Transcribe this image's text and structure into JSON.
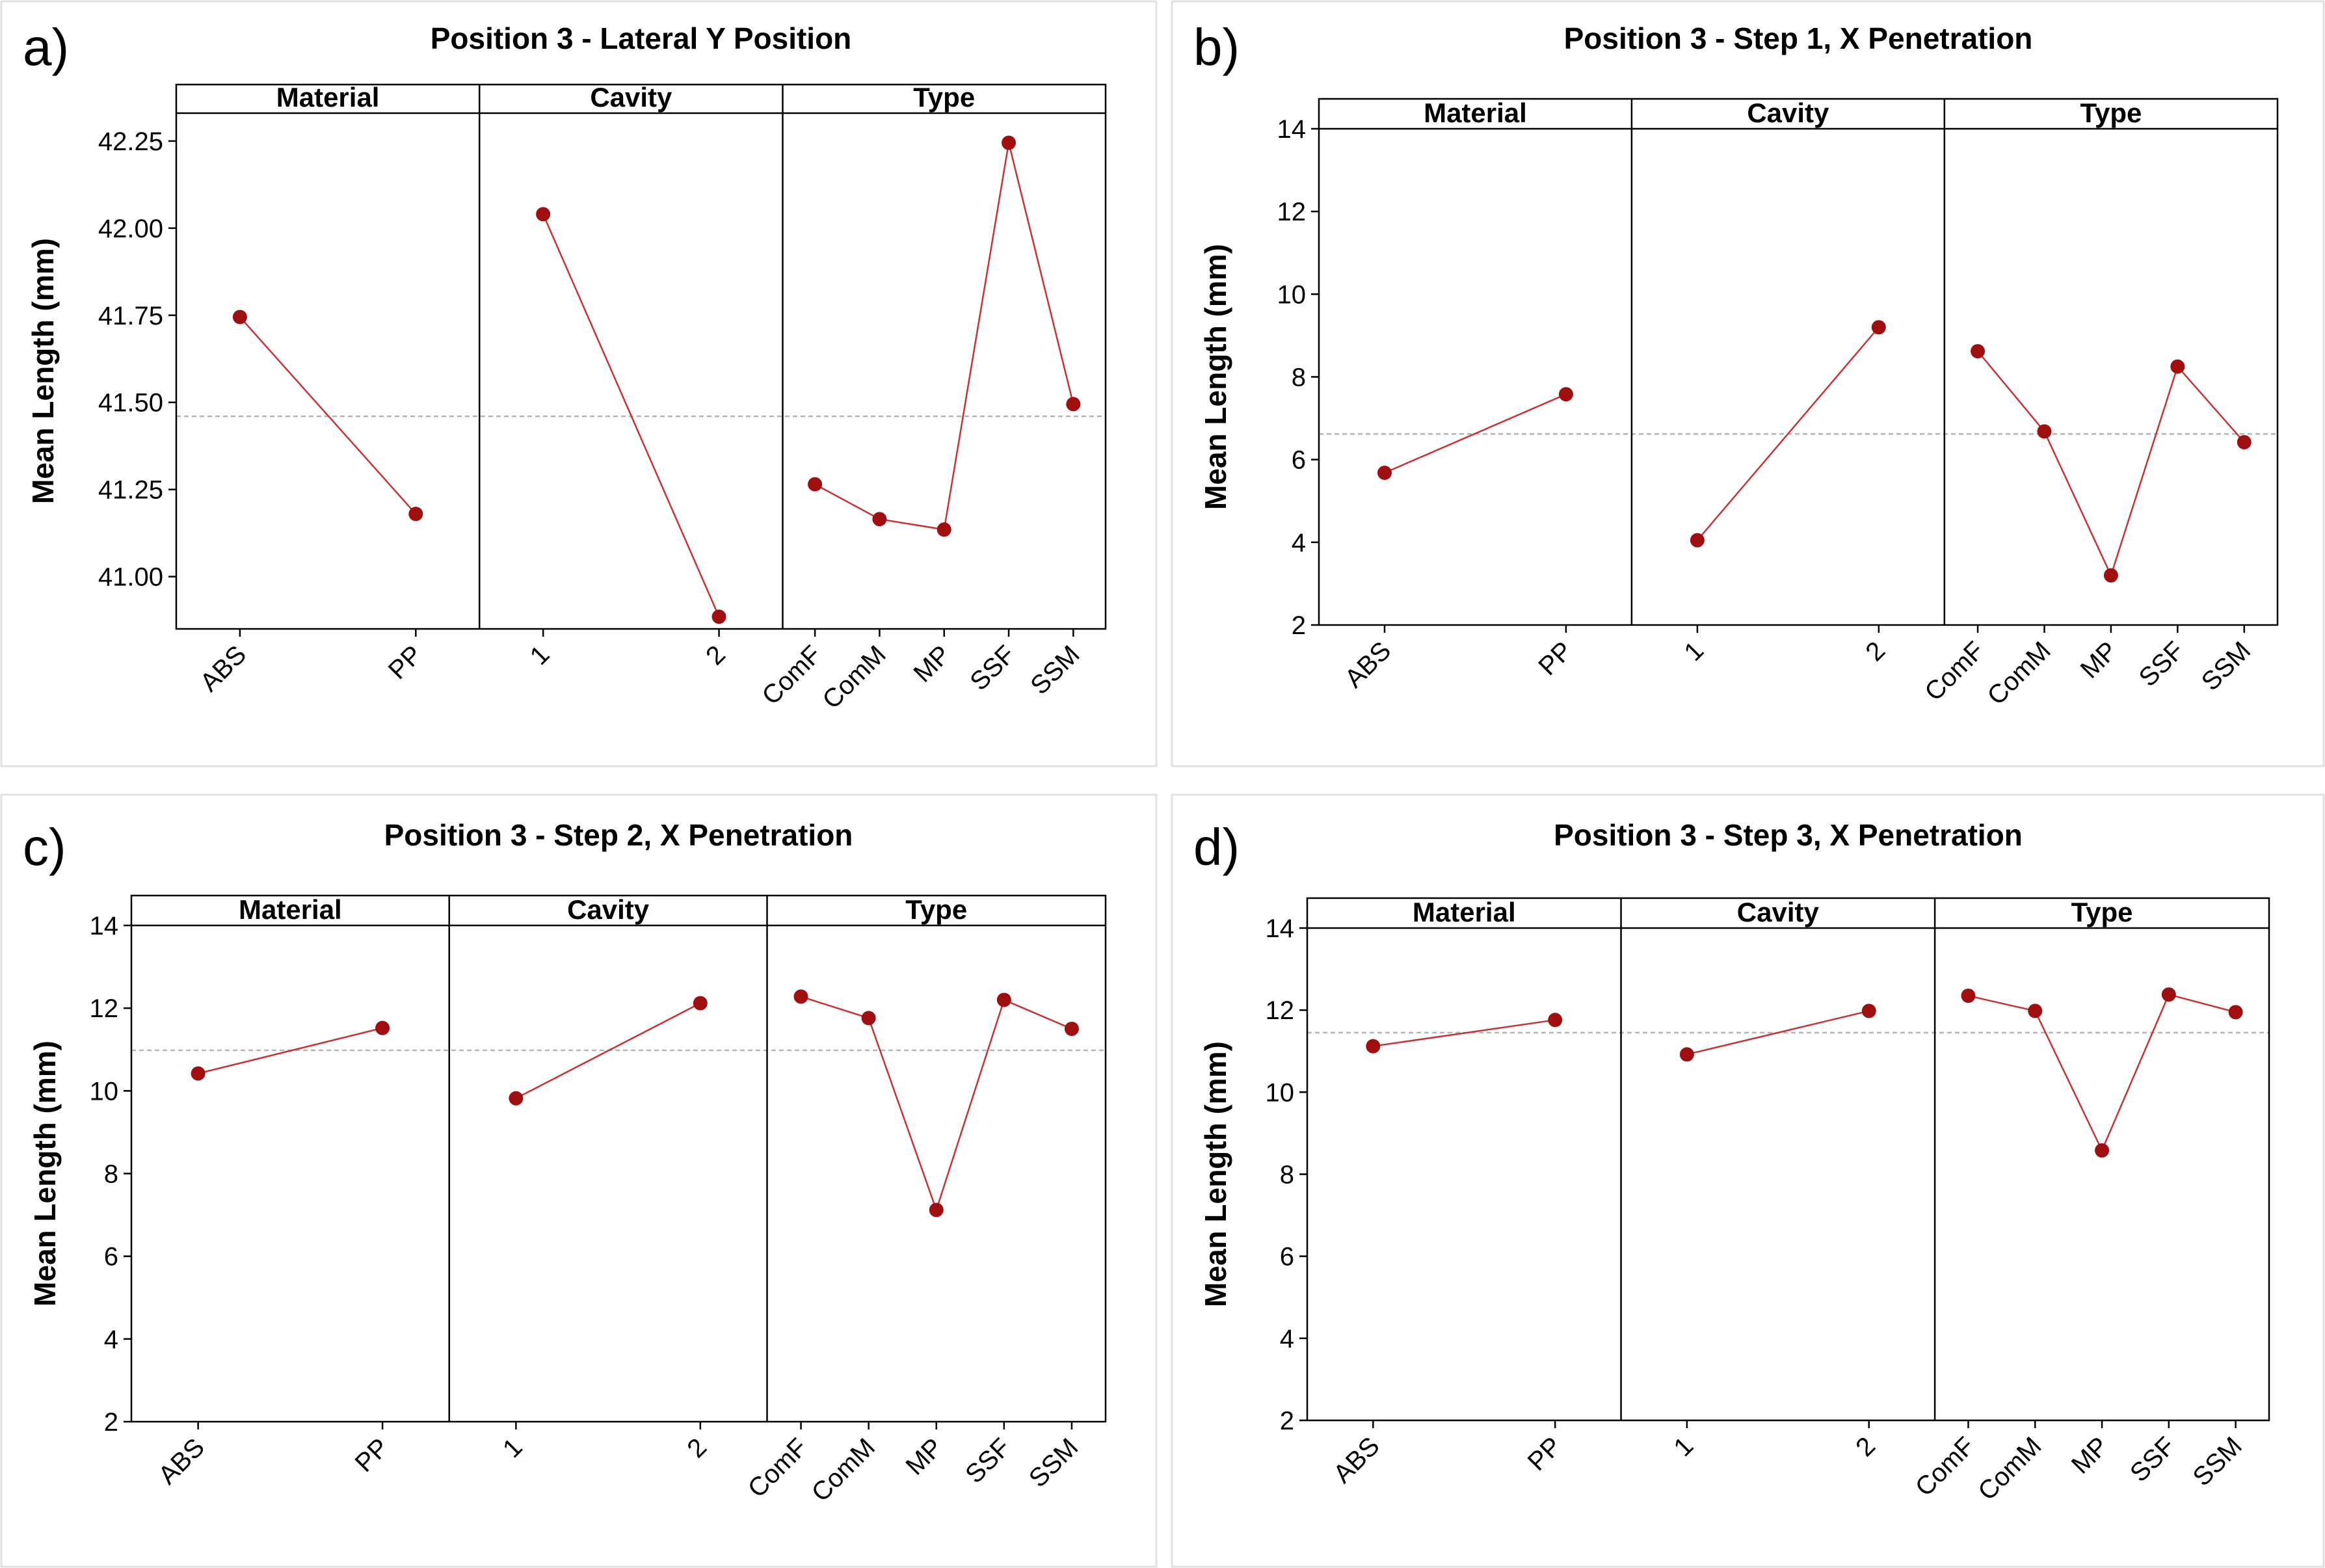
{
  "figure": {
    "colors": {
      "line": "#c83232",
      "marker": "#a00f0f",
      "mean_line": "#b4b4b4",
      "frame": "#000000",
      "panel_border": "#e0e0e0"
    }
  },
  "chart_data": [
    {
      "panel_label": "a)",
      "type": "line",
      "title": "Position 3 - Lateral Y Position",
      "ylabel": "Mean Length (mm)",
      "ylim": [
        40.85,
        42.33
      ],
      "yticks": [
        41.0,
        41.25,
        41.5,
        41.75,
        42.0,
        42.25
      ],
      "ytick_labels": [
        "41.00",
        "41.25",
        "41.50",
        "41.75",
        "42.00",
        "42.25"
      ],
      "grand_mean": 41.46,
      "factors": [
        {
          "name": "Material",
          "levels": [
            "ABS",
            "PP"
          ],
          "values": [
            41.745,
            41.18
          ]
        },
        {
          "name": "Cavity",
          "levels": [
            "1",
            "2"
          ],
          "values": [
            42.04,
            40.885
          ]
        },
        {
          "name": "Type",
          "levels": [
            "ComF",
            "ComM",
            "MP",
            "SSF",
            "SSM"
          ],
          "values": [
            41.265,
            41.165,
            41.135,
            42.245,
            41.495
          ]
        }
      ]
    },
    {
      "panel_label": "b)",
      "type": "line",
      "title": "Position 3 - Step 1, X Penetration",
      "ylabel": "Mean Length (mm)",
      "ylim": [
        2,
        14
      ],
      "yticks": [
        2,
        4,
        6,
        8,
        10,
        12,
        14
      ],
      "ytick_labels": [
        "2",
        "4",
        "6",
        "8",
        "10",
        "12",
        "14"
      ],
      "grand_mean": 6.62,
      "factors": [
        {
          "name": "Material",
          "levels": [
            "ABS",
            "PP"
          ],
          "values": [
            5.68,
            7.58
          ]
        },
        {
          "name": "Cavity",
          "levels": [
            "1",
            "2"
          ],
          "values": [
            4.05,
            9.2
          ]
        },
        {
          "name": "Type",
          "levels": [
            "ComF",
            "ComM",
            "MP",
            "SSF",
            "SSM"
          ],
          "values": [
            8.62,
            6.68,
            3.2,
            8.25,
            6.42
          ]
        }
      ]
    },
    {
      "panel_label": "c)",
      "type": "line",
      "title": "Position 3 - Step 2, X Penetration",
      "ylabel": "Mean Length (mm)",
      "ylim": [
        2,
        14
      ],
      "yticks": [
        2,
        4,
        6,
        8,
        10,
        12,
        14
      ],
      "ytick_labels": [
        "2",
        "4",
        "6",
        "8",
        "10",
        "12",
        "14"
      ],
      "grand_mean": 10.98,
      "factors": [
        {
          "name": "Material",
          "levels": [
            "ABS",
            "PP"
          ],
          "values": [
            10.42,
            11.52
          ]
        },
        {
          "name": "Cavity",
          "levels": [
            "1",
            "2"
          ],
          "values": [
            9.82,
            12.12
          ]
        },
        {
          "name": "Type",
          "levels": [
            "ComF",
            "ComM",
            "MP",
            "SSF",
            "SSM"
          ],
          "values": [
            12.28,
            11.76,
            7.12,
            12.2,
            11.5
          ]
        }
      ]
    },
    {
      "panel_label": "d)",
      "type": "line",
      "title": "Position 3 - Step 3, X Penetration",
      "ylabel": "Mean Length (mm)",
      "ylim": [
        2,
        14
      ],
      "yticks": [
        2,
        4,
        6,
        8,
        10,
        12,
        14
      ],
      "ytick_labels": [
        "2",
        "4",
        "6",
        "8",
        "10",
        "12",
        "14"
      ],
      "grand_mean": 11.45,
      "factors": [
        {
          "name": "Material",
          "levels": [
            "ABS",
            "PP"
          ],
          "values": [
            11.12,
            11.76
          ]
        },
        {
          "name": "Cavity",
          "levels": [
            "1",
            "2"
          ],
          "values": [
            10.92,
            11.98
          ]
        },
        {
          "name": "Type",
          "levels": [
            "ComF",
            "ComM",
            "MP",
            "SSF",
            "SSM"
          ],
          "values": [
            12.35,
            11.98,
            8.58,
            12.38,
            11.95
          ]
        }
      ]
    }
  ]
}
